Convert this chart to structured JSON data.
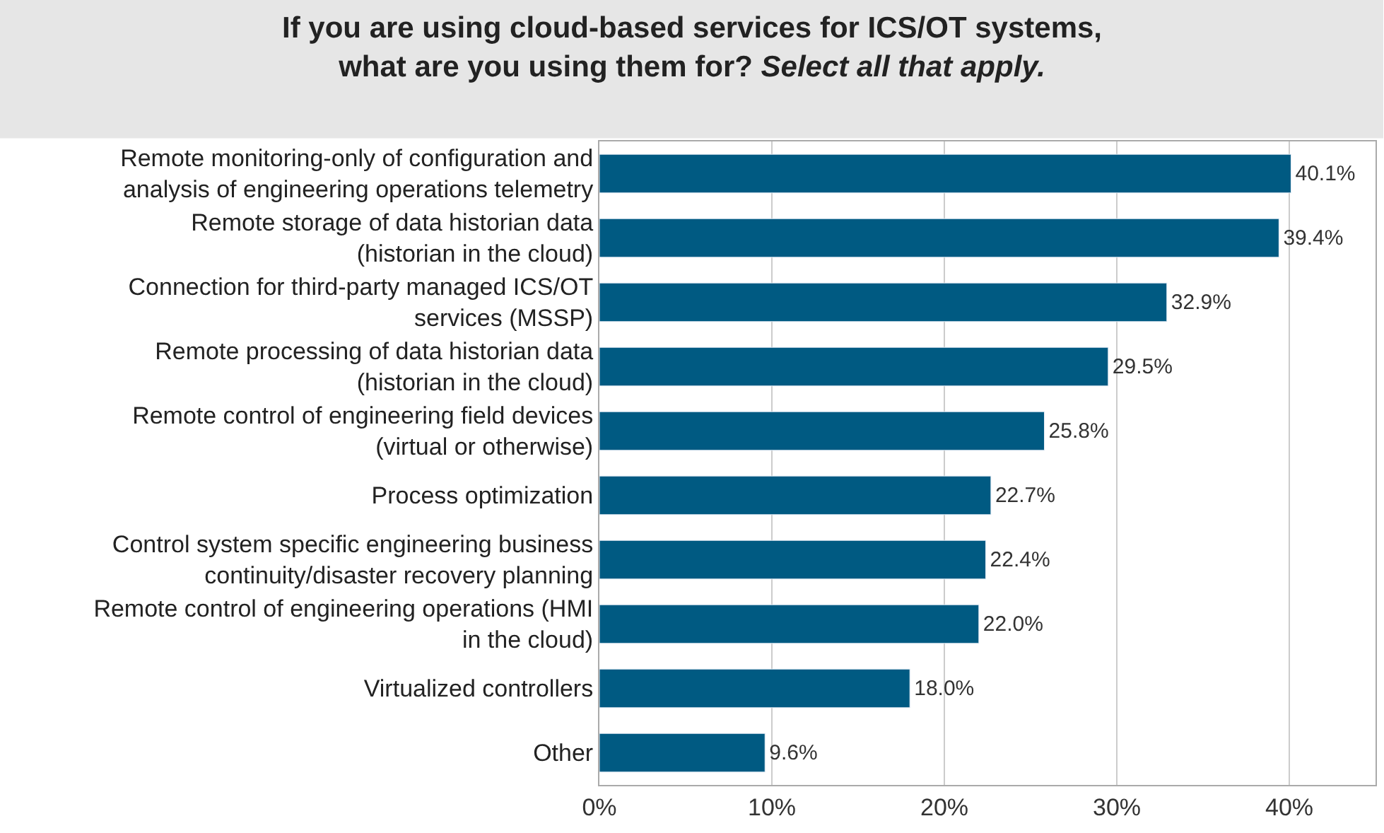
{
  "chart_data": {
    "type": "bar",
    "orientation": "horizontal",
    "title": "If you are using cloud-based services for ICS/OT systems,\nwhat are you using them for?",
    "subtitle": "Select all that apply.",
    "categories": [
      "Remote monitoring-only of configuration and analysis of engineering operations telemetry",
      "Remote storage of data historian data (historian in the cloud)",
      "Connection for third-party managed ICS/OT services (MSSP)",
      "Remote processing of data historian data (historian in the cloud)",
      "Remote control of engineering field devices (virtual or otherwise)",
      "Process optimization",
      "Control system specific engineering business continuity/disaster recovery planning",
      "Remote control of engineering operations (HMI in the cloud)",
      "Virtualized controllers",
      "Other"
    ],
    "values": [
      40.1,
      39.4,
      32.9,
      29.5,
      25.8,
      22.7,
      22.4,
      22.0,
      18.0,
      9.6
    ],
    "value_labels": [
      "40.1%",
      "39.4%",
      "32.9%",
      "29.5%",
      "25.8%",
      "22.7%",
      "22.4%",
      "22.0%",
      "18.0%",
      "9.6%"
    ],
    "color": "#005a82",
    "xlim": [
      0,
      45
    ],
    "xticks": [
      {
        "value": 0,
        "label": "0%"
      },
      {
        "value": 10,
        "label": "10%"
      },
      {
        "value": 20,
        "label": "20%"
      },
      {
        "value": 30,
        "label": "30%"
      },
      {
        "value": 40,
        "label": "40%"
      }
    ],
    "grid": "x",
    "legend": false
  }
}
